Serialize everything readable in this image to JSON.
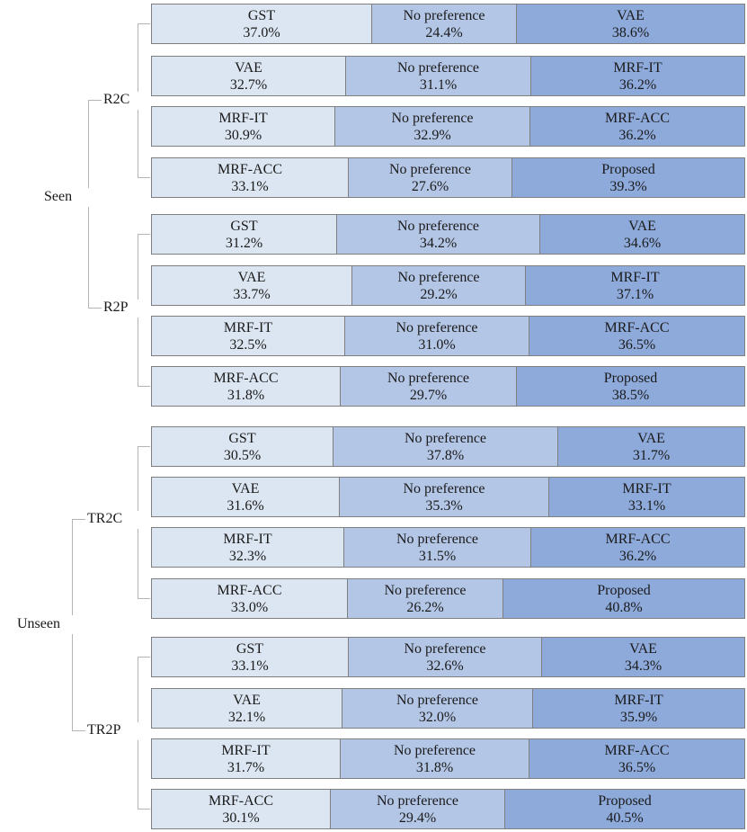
{
  "colors": {
    "left": "#dce6f2",
    "middle": "#b4c6e6",
    "right": "#8eaadb",
    "border": "#7f7f7f",
    "bracket": "#b4b4b4"
  },
  "chart_data": {
    "type": "bar",
    "orientation": "horizontal",
    "stacked": true,
    "percent_stacked": true,
    "middle_label": "No preference",
    "groups": [
      {
        "label": "Seen",
        "subgroups": [
          {
            "label": "R2C",
            "comparisons": [
              {
                "left": "GST",
                "left_pct": 37.0,
                "left_text": "37.0%",
                "middle_pct": 24.4,
                "middle_text": "24.4%",
                "right": "VAE",
                "right_pct": 38.6,
                "right_text": "38.6%"
              },
              {
                "left": "VAE",
                "left_pct": 32.7,
                "left_text": "32.7%",
                "middle_pct": 31.1,
                "middle_text": "31.1%",
                "right": "MRF-IT",
                "right_pct": 36.2,
                "right_text": "36.2%"
              },
              {
                "left": "MRF-IT",
                "left_pct": 30.9,
                "left_text": "30.9%",
                "middle_pct": 32.9,
                "middle_text": "32.9%",
                "right": "MRF-ACC",
                "right_pct": 36.2,
                "right_text": "36.2%"
              },
              {
                "left": "MRF-ACC",
                "left_pct": 33.1,
                "left_text": "33.1%",
                "middle_pct": 27.6,
                "middle_text": "27.6%",
                "right": "Proposed",
                "right_pct": 39.3,
                "right_text": "39.3%"
              }
            ]
          },
          {
            "label": "R2P",
            "comparisons": [
              {
                "left": "GST",
                "left_pct": 31.2,
                "left_text": "31.2%",
                "middle_pct": 34.2,
                "middle_text": "34.2%",
                "right": "VAE",
                "right_pct": 34.6,
                "right_text": "34.6%"
              },
              {
                "left": "VAE",
                "left_pct": 33.7,
                "left_text": "33.7%",
                "middle_pct": 29.2,
                "middle_text": "29.2%",
                "right": "MRF-IT",
                "right_pct": 37.1,
                "right_text": "37.1%"
              },
              {
                "left": "MRF-IT",
                "left_pct": 32.5,
                "left_text": "32.5%",
                "middle_pct": 31.0,
                "middle_text": "31.0%",
                "right": "MRF-ACC",
                "right_pct": 36.5,
                "right_text": "36.5%"
              },
              {
                "left": "MRF-ACC",
                "left_pct": 31.8,
                "left_text": "31.8%",
                "middle_pct": 29.7,
                "middle_text": "29.7%",
                "right": "Proposed",
                "right_pct": 38.5,
                "right_text": "38.5%"
              }
            ]
          }
        ]
      },
      {
        "label": "Unseen",
        "subgroups": [
          {
            "label": "TR2C",
            "comparisons": [
              {
                "left": "GST",
                "left_pct": 30.5,
                "left_text": "30.5%",
                "middle_pct": 37.8,
                "middle_text": "37.8%",
                "right": "VAE",
                "right_pct": 31.7,
                "right_text": "31.7%"
              },
              {
                "left": "VAE",
                "left_pct": 31.6,
                "left_text": "31.6%",
                "middle_pct": 35.3,
                "middle_text": "35.3%",
                "right": "MRF-IT",
                "right_pct": 33.1,
                "right_text": "33.1%"
              },
              {
                "left": "MRF-IT",
                "left_pct": 32.3,
                "left_text": "32.3%",
                "middle_pct": 31.5,
                "middle_text": "31.5%",
                "right": "MRF-ACC",
                "right_pct": 36.2,
                "right_text": "36.2%"
              },
              {
                "left": "MRF-ACC",
                "left_pct": 33.0,
                "left_text": "33.0%",
                "middle_pct": 26.2,
                "middle_text": "26.2%",
                "right": "Proposed",
                "right_pct": 40.8,
                "right_text": "40.8%"
              }
            ]
          },
          {
            "label": "TR2P",
            "comparisons": [
              {
                "left": "GST",
                "left_pct": 33.1,
                "left_text": "33.1%",
                "middle_pct": 32.6,
                "middle_text": "32.6%",
                "right": "VAE",
                "right_pct": 34.3,
                "right_text": "34.3%"
              },
              {
                "left": "VAE",
                "left_pct": 32.1,
                "left_text": "32.1%",
                "middle_pct": 32.0,
                "middle_text": "32.0%",
                "right": "MRF-IT",
                "right_pct": 35.9,
                "right_text": "35.9%"
              },
              {
                "left": "MRF-IT",
                "left_pct": 31.7,
                "left_text": "31.7%",
                "middle_pct": 31.8,
                "middle_text": "31.8%",
                "right": "MRF-ACC",
                "right_pct": 36.5,
                "right_text": "36.5%"
              },
              {
                "left": "MRF-ACC",
                "left_pct": 30.1,
                "left_text": "30.1%",
                "middle_pct": 29.4,
                "middle_text": "29.4%",
                "right": "Proposed",
                "right_pct": 40.5,
                "right_text": "40.5%"
              }
            ]
          }
        ]
      }
    ]
  }
}
